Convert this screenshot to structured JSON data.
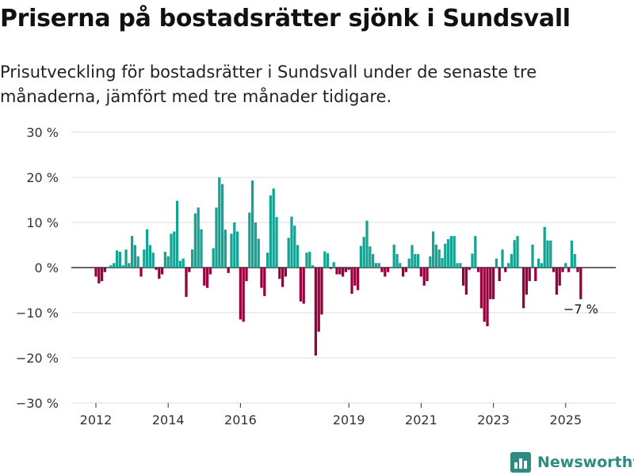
{
  "title": "Priserna på bostadsrätter sjönk i Sundsvall",
  "subtitle": "Prisutveckling för bostadsrätter i Sundsvall under de senaste tre månaderna, jämfört med tre månader tidigare.",
  "brand": {
    "name": "Newsworthy",
    "icon": "newsworthy-logo-icon"
  },
  "colors": {
    "positive": "#16a394",
    "negative": "#96003d",
    "gridline": "#dddddd",
    "axis": "#333333"
  },
  "chart_data": {
    "type": "bar",
    "title": "Priserna på bostadsrätter sjönk i Sundsvall",
    "subtitle": "Prisutveckling för bostadsrätter i Sundsvall under de senaste tre månaderna, jämfört med tre månader tidigare.",
    "xlabel": "",
    "ylabel": "",
    "ylim": [
      -30,
      30
    ],
    "yticks": [
      30,
      20,
      10,
      0,
      -10,
      -20,
      -30
    ],
    "ytick_labels": [
      "30 %",
      "20 %",
      "10 %",
      "0 %",
      "−10 %",
      "−20 %",
      "−30 %"
    ],
    "xticks": [
      2012,
      2014,
      2016,
      2019,
      2021,
      2023,
      2025
    ],
    "xtick_labels": [
      "2012",
      "2014",
      "2016",
      "2019",
      "2021",
      "2023",
      "2025"
    ],
    "grid": true,
    "start": "2012-01",
    "end": "2025-06",
    "annotation": {
      "text": "−7 %",
      "value": -7
    },
    "values": [
      -2,
      -3.5,
      -3,
      -1,
      0,
      0.5,
      1,
      3.8,
      3.5,
      0.5,
      4,
      1,
      7,
      5,
      2.5,
      -2,
      4,
      8.5,
      5,
      3.3,
      -0.5,
      -2.5,
      -1.5,
      3.5,
      2.5,
      7.5,
      8,
      14.8,
      1.5,
      2,
      -6.5,
      -1,
      4,
      12,
      13.3,
      8.5,
      -4,
      -4.5,
      -1.5,
      4.3,
      13.3,
      20,
      18.5,
      8.4,
      -1.2,
      7.5,
      10,
      8,
      -11.5,
      -12,
      -3,
      12.2,
      19.3,
      10,
      6.4,
      -4.5,
      -6.3,
      3.3,
      16,
      17.5,
      11.2,
      -2.5,
      -4.3,
      -2,
      6.6,
      11.3,
      9.3,
      5,
      -7.5,
      -8,
      3.3,
      3.5,
      0.5,
      -19.5,
      -14.2,
      -10.4,
      3.6,
      3.2,
      -0.3,
      1.2,
      -1.5,
      -1.5,
      -2,
      -1,
      -0.5,
      -5.8,
      -4,
      -5,
      4.8,
      6.8,
      10.4,
      4.7,
      3,
      1,
      1,
      -1,
      -2,
      -1,
      0,
      5.1,
      3,
      1,
      -2,
      -1,
      2,
      5,
      3,
      3,
      -2,
      -4,
      -3,
      2.5,
      8,
      5.1,
      4,
      2.1,
      5.3,
      6.3,
      7,
      7,
      1,
      1,
      -4,
      -6,
      -0.5,
      3.1,
      7,
      -1,
      -9,
      -12,
      -13,
      -7,
      -7,
      2,
      -3,
      4,
      -1,
      1,
      3,
      6.1,
      7,
      0,
      -9,
      -6,
      -3,
      5.1,
      -3,
      2,
      1,
      9,
      6,
      6,
      -1,
      -6,
      -4,
      -1,
      1,
      -1,
      6,
      3,
      -1,
      -7
    ]
  }
}
